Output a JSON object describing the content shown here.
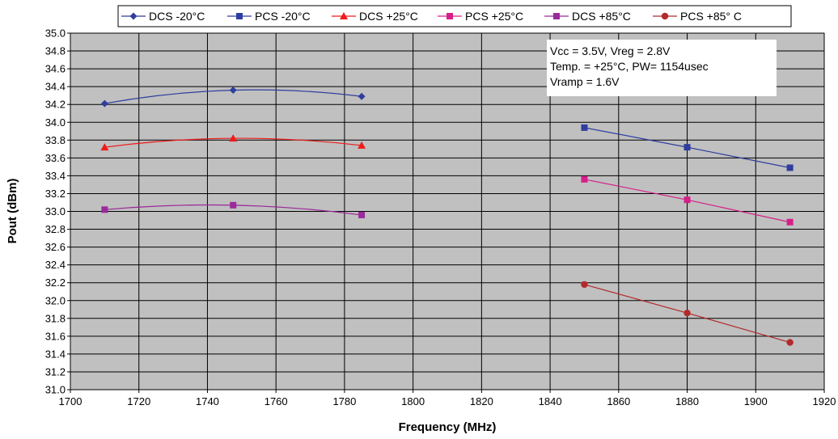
{
  "chart_data": {
    "type": "line",
    "xlabel": "Frequency (MHz)",
    "ylabel": "Pout (dBm)",
    "xlim": [
      1700,
      1920
    ],
    "ylim": [
      31.0,
      35.0
    ],
    "x_ticks": [
      1700,
      1720,
      1740,
      1760,
      1780,
      1800,
      1820,
      1840,
      1860,
      1880,
      1900,
      1920
    ],
    "y_ticks": [
      "31.0",
      "31.2",
      "31.4",
      "31.6",
      "31.8",
      "32.0",
      "32.2",
      "32.4",
      "32.6",
      "32.8",
      "33.0",
      "33.2",
      "33.4",
      "33.6",
      "33.8",
      "34.0",
      "34.2",
      "34.4",
      "34.6",
      "34.8",
      "35.0"
    ],
    "grid": true,
    "plot_background": "#c0c0c0",
    "legend_position": "top",
    "series": [
      {
        "name": "DCS -20°C",
        "color": "#2f3e9e",
        "marker": "diamond",
        "smooth": true,
        "x": [
          1710,
          1747.5,
          1785
        ],
        "y": [
          34.21,
          34.36,
          34.29
        ]
      },
      {
        "name": "PCS -20°C",
        "color": "#2f3e9e",
        "marker": "square",
        "smooth": false,
        "x": [
          1850,
          1880,
          1910
        ],
        "y": [
          33.94,
          33.72,
          33.49
        ]
      },
      {
        "name": "DCS +25°C",
        "color": "#ee1c1c",
        "marker": "triangle",
        "smooth": true,
        "x": [
          1710,
          1747.5,
          1785
        ],
        "y": [
          33.72,
          33.82,
          33.74
        ]
      },
      {
        "name": "PCS +25°C",
        "color": "#d61f8a",
        "marker": "square",
        "smooth": false,
        "x": [
          1850,
          1880,
          1910
        ],
        "y": [
          33.36,
          33.13,
          32.88
        ]
      },
      {
        "name": "DCS +85°C",
        "color": "#9b2a9b",
        "marker": "square",
        "smooth": true,
        "x": [
          1710,
          1747.5,
          1785
        ],
        "y": [
          33.02,
          33.07,
          32.96
        ]
      },
      {
        "name": "PCS +85° C",
        "color": "#b22a2a",
        "marker": "circle",
        "smooth": false,
        "x": [
          1850,
          1880,
          1910
        ],
        "y": [
          32.18,
          31.86,
          31.53
        ]
      }
    ],
    "annotation": {
      "lines": [
        "Vcc = 3.5V,  Vreg = 2.8V",
        "Temp. = +25°C, PW= 1154usec",
        "Vramp = 1.6V"
      ]
    }
  }
}
